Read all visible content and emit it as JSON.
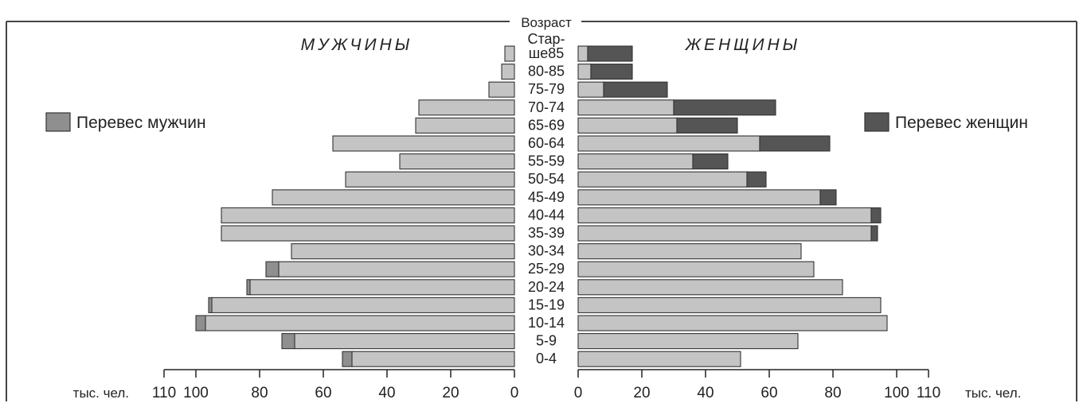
{
  "chart_data": {
    "type": "bar",
    "subtype": "population-pyramid",
    "age_axis_title": "Возраст",
    "left_header": "МУЖЧИНЫ",
    "right_header": "ЖЕНЩИНЫ",
    "unit_label": "тыс. чел.",
    "legend": {
      "left": "Перевес мужчин",
      "right": "Перевес женщин"
    },
    "colors": {
      "bar": "#c4c4c4",
      "excess_male": "#8f8f8f",
      "excess_female": "#555555",
      "edge": "#333333"
    },
    "xlim": [
      0,
      110
    ],
    "ticks_left": [
      "110",
      "100",
      "80",
      "60",
      "40",
      "20",
      "0"
    ],
    "ticks_right": [
      "0",
      "20",
      "40",
      "60",
      "80",
      "100",
      "110"
    ],
    "tick_values": [
      110,
      100,
      80,
      60,
      40,
      20,
      0
    ],
    "age_groups": [
      "Стар-ше85",
      "80-85",
      "75-79",
      "70-74",
      "65-69",
      "60-64",
      "55-59",
      "50-54",
      "45-49",
      "40-44",
      "35-39",
      "30-34",
      "25-29",
      "20-24",
      "15-19",
      "10-14",
      "5-9",
      "0-4"
    ],
    "age_labels": [
      "ше85",
      "80-85",
      "75-79",
      "70-74",
      "65-69",
      "60-64",
      "55-59",
      "50-54",
      "45-49",
      "40-44",
      "35-39",
      "30-34",
      "25-29",
      "20-24",
      "15-19",
      "10-14",
      "5-9",
      "0-4"
    ],
    "top_label_prefix": "Стар-",
    "series": [
      {
        "name": "МУЖЧИНЫ",
        "values": [
          3,
          4,
          8,
          30,
          31,
          57,
          36,
          53,
          76,
          92,
          92,
          70,
          78,
          84,
          96,
          100,
          73,
          54
        ]
      },
      {
        "name": "ЖЕНЩИНЫ",
        "values": [
          17,
          17,
          28,
          62,
          50,
          79,
          47,
          59,
          81,
          95,
          94,
          70,
          74,
          83,
          95,
          97,
          69,
          51
        ]
      }
    ]
  }
}
